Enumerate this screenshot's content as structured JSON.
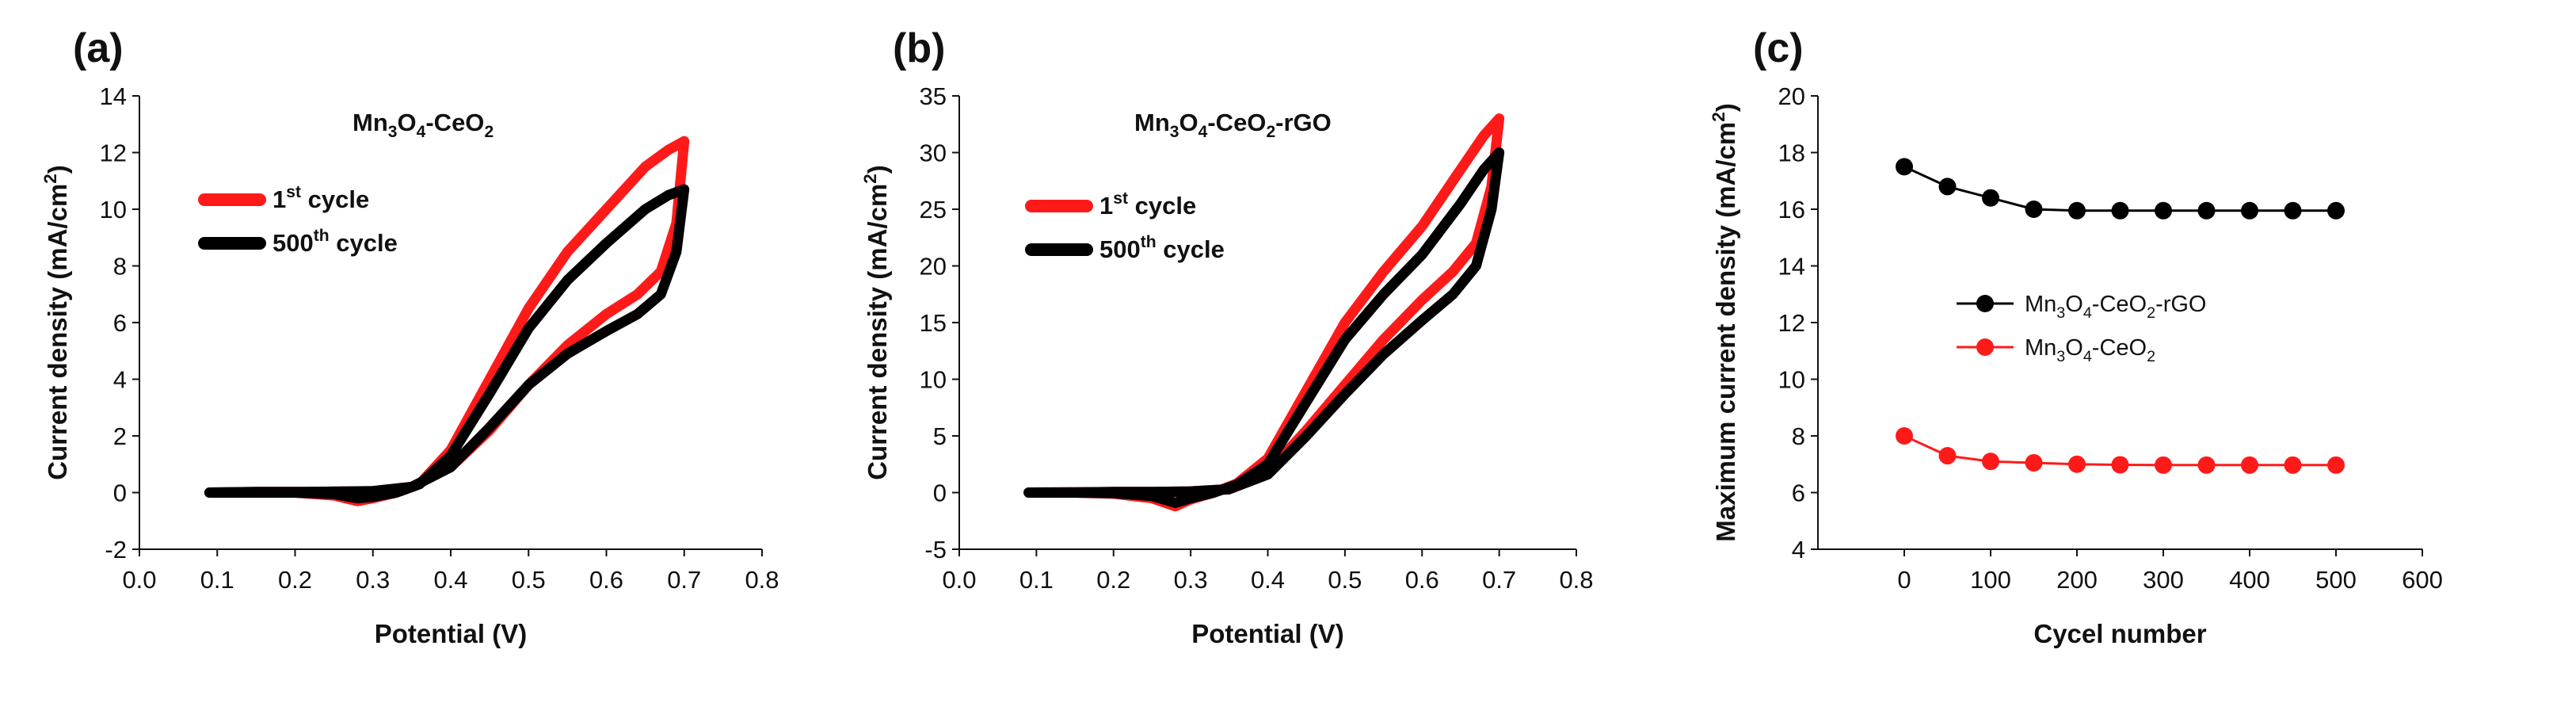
{
  "chart_data": [
    {
      "panel_label": "(a)",
      "type": "line",
      "title_parts": [
        "Mn",
        "3",
        "O",
        "4",
        "-CeO",
        "2"
      ],
      "xlabel": "Potential (V)",
      "ylabel_parts": [
        "Current density (mA/cm",
        "2",
        ")"
      ],
      "xlim": [
        0.0,
        0.8
      ],
      "ylim": [
        -2,
        14
      ],
      "x_ticks": [
        "0.0",
        "0.1",
        "0.2",
        "0.3",
        "0.4",
        "0.5",
        "0.6",
        "0.7",
        "0.8"
      ],
      "y_ticks": [
        "-2",
        "0",
        "2",
        "4",
        "6",
        "8",
        "10",
        "12",
        "14"
      ],
      "legend": [
        {
          "label_parts": [
            "1",
            "st",
            " cycle"
          ],
          "color": "#ff1a1a"
        },
        {
          "label_parts": [
            "500",
            "th",
            " cycle"
          ],
          "color": "#000000"
        }
      ],
      "series": [
        {
          "name": "1st cycle",
          "color": "#ff1a1a",
          "x": [
            0.09,
            0.15,
            0.2,
            0.25,
            0.28,
            0.3,
            0.33,
            0.36,
            0.4,
            0.45,
            0.5,
            0.55,
            0.6,
            0.65,
            0.68,
            0.7,
            0.69,
            0.67,
            0.64,
            0.6,
            0.55,
            0.5,
            0.45,
            0.4,
            0.35,
            0.3,
            0.25,
            0.2,
            0.15,
            0.09
          ],
          "y": [
            0.0,
            0.0,
            0.0,
            -0.1,
            -0.3,
            -0.2,
            0.0,
            0.3,
            1.5,
            4.0,
            6.5,
            8.5,
            10.0,
            11.5,
            12.1,
            12.4,
            9.5,
            7.8,
            7.0,
            6.3,
            5.2,
            3.8,
            2.2,
            0.9,
            0.2,
            0.05,
            0.03,
            0.02,
            0.02,
            0.0
          ]
        },
        {
          "name": "500th cycle",
          "color": "#000000",
          "x": [
            0.09,
            0.15,
            0.2,
            0.25,
            0.28,
            0.3,
            0.33,
            0.36,
            0.4,
            0.45,
            0.5,
            0.55,
            0.6,
            0.65,
            0.68,
            0.7,
            0.69,
            0.67,
            0.64,
            0.6,
            0.55,
            0.5,
            0.45,
            0.4,
            0.35,
            0.3,
            0.25,
            0.2,
            0.15,
            0.09
          ],
          "y": [
            0.0,
            0.0,
            0.0,
            -0.05,
            -0.2,
            -0.15,
            0.0,
            0.3,
            1.3,
            3.5,
            5.8,
            7.5,
            8.8,
            10.0,
            10.5,
            10.7,
            8.5,
            7.0,
            6.3,
            5.7,
            4.9,
            3.8,
            2.3,
            0.9,
            0.2,
            0.05,
            0.03,
            0.02,
            0.02,
            0.0
          ]
        }
      ]
    },
    {
      "panel_label": "(b)",
      "type": "line",
      "title_parts": [
        "Mn",
        "3",
        "O",
        "4",
        "-CeO",
        "2",
        "-rGO"
      ],
      "xlabel": "Potential (V)",
      "ylabel_parts": [
        "Current density (mA/cm",
        "2",
        ")"
      ],
      "xlim": [
        0.0,
        0.8
      ],
      "ylim": [
        -5,
        35
      ],
      "x_ticks": [
        "0.0",
        "0.1",
        "0.2",
        "0.3",
        "0.4",
        "0.5",
        "0.6",
        "0.7",
        "0.8"
      ],
      "y_ticks": [
        "-5",
        "0",
        "5",
        "10",
        "15",
        "20",
        "25",
        "30",
        "35"
      ],
      "legend": [
        {
          "label_parts": [
            "1",
            "st",
            " cycle"
          ],
          "color": "#ff1a1a"
        },
        {
          "label_parts": [
            "500",
            "th",
            " cycle"
          ],
          "color": "#000000"
        }
      ],
      "series": [
        {
          "name": "1st cycle",
          "color": "#ff1a1a",
          "x": [
            0.09,
            0.15,
            0.2,
            0.25,
            0.28,
            0.3,
            0.33,
            0.36,
            0.4,
            0.45,
            0.5,
            0.55,
            0.6,
            0.65,
            0.68,
            0.7,
            0.69,
            0.67,
            0.64,
            0.6,
            0.55,
            0.5,
            0.45,
            0.4,
            0.35,
            0.3,
            0.25,
            0.2,
            0.15,
            0.09
          ],
          "y": [
            0.0,
            0.0,
            -0.1,
            -0.5,
            -1.2,
            -0.6,
            0.0,
            0.8,
            3.0,
            9.0,
            15.0,
            19.5,
            23.5,
            28.5,
            31.5,
            33.0,
            27.0,
            22.0,
            19.5,
            17.0,
            13.5,
            9.5,
            5.5,
            1.8,
            0.3,
            0.1,
            0.05,
            0.05,
            0.02,
            0.0
          ]
        },
        {
          "name": "500th cycle",
          "color": "#000000",
          "x": [
            0.09,
            0.15,
            0.2,
            0.25,
            0.28,
            0.3,
            0.33,
            0.36,
            0.4,
            0.45,
            0.5,
            0.55,
            0.6,
            0.65,
            0.68,
            0.7,
            0.69,
            0.67,
            0.64,
            0.6,
            0.55,
            0.5,
            0.45,
            0.4,
            0.35,
            0.3,
            0.25,
            0.2,
            0.15,
            0.09
          ],
          "y": [
            0.0,
            0.0,
            -0.05,
            -0.3,
            -0.9,
            -0.5,
            0.0,
            0.7,
            2.5,
            8.0,
            13.5,
            17.5,
            21.0,
            25.5,
            28.5,
            30.0,
            25.0,
            20.0,
            17.5,
            15.2,
            12.2,
            8.7,
            5.0,
            1.6,
            0.3,
            0.1,
            0.05,
            0.05,
            0.02,
            0.0
          ]
        }
      ]
    },
    {
      "panel_label": "(c)",
      "type": "line",
      "xlabel": "Cycel number",
      "ylabel_parts": [
        "Maximum current density (mA/cm",
        "2",
        ")"
      ],
      "xlim": [
        -100,
        600
      ],
      "ylim": [
        4,
        20
      ],
      "x_ticks": [
        "0",
        "100",
        "200",
        "300",
        "400",
        "500",
        "600"
      ],
      "y_ticks": [
        "4",
        "6",
        "8",
        "10",
        "12",
        "14",
        "16",
        "18",
        "20"
      ],
      "legend": [
        {
          "label_parts": [
            "Mn",
            "3",
            "O",
            "4",
            "-CeO",
            "2",
            "-rGO"
          ],
          "color": "#000000"
        },
        {
          "label_parts": [
            "Mn",
            "3",
            "O",
            "4",
            "-CeO",
            "2"
          ],
          "color": "#ff1a1a"
        }
      ],
      "series": [
        {
          "name": "Mn3O4-CeO2-rGO",
          "color": "#000000",
          "x": [
            0,
            50,
            100,
            150,
            200,
            250,
            300,
            350,
            400,
            450,
            500
          ],
          "y": [
            17.5,
            16.8,
            16.4,
            16.0,
            15.95,
            15.95,
            15.95,
            15.95,
            15.95,
            15.95,
            15.95
          ]
        },
        {
          "name": "Mn3O4-CeO2",
          "color": "#ff1a1a",
          "x": [
            0,
            50,
            100,
            150,
            200,
            250,
            300,
            350,
            400,
            450,
            500
          ],
          "y": [
            8.0,
            7.3,
            7.1,
            7.05,
            7.0,
            6.98,
            6.97,
            6.97,
            6.97,
            6.97,
            6.97
          ]
        }
      ]
    }
  ]
}
